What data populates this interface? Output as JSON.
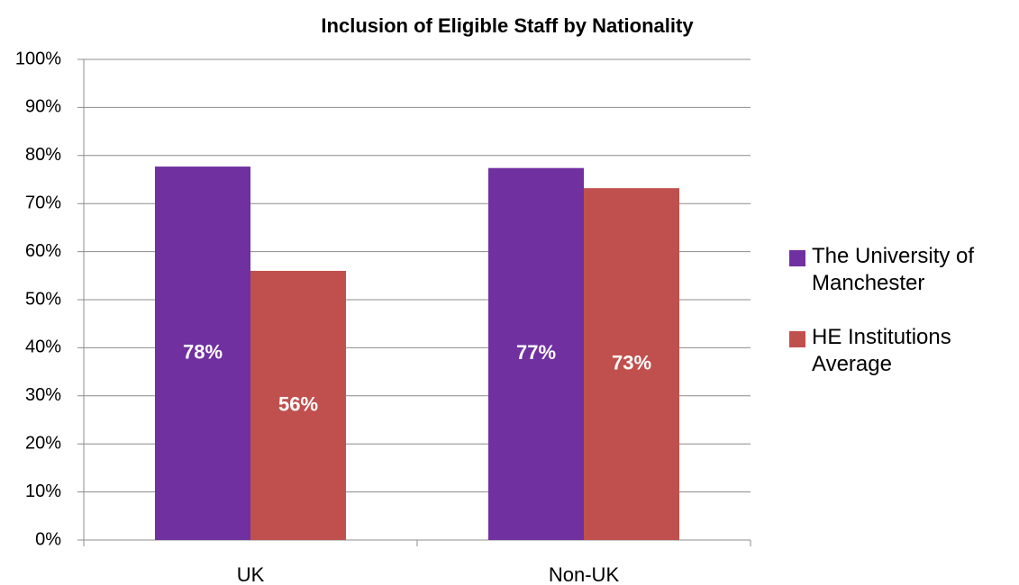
{
  "chart_data": {
    "type": "bar",
    "title": "Inclusion of Eligible Staff by Nationality",
    "categories": [
      "UK",
      "Non-UK"
    ],
    "series": [
      {
        "name": "The University of Manchester",
        "color": "#7030a0",
        "values": [
          77.7,
          77.4
        ],
        "value_labels": [
          "78%",
          "77%"
        ]
      },
      {
        "name": "HE Institutions Average",
        "color": "#c0504d",
        "values": [
          56,
          73.2
        ],
        "value_labels": [
          "56%",
          "73%"
        ]
      }
    ],
    "ylim": [
      0,
      100
    ],
    "yticks": [
      {
        "value": 0,
        "label": "0%"
      },
      {
        "value": 10,
        "label": "10%"
      },
      {
        "value": 20,
        "label": "20%"
      },
      {
        "value": 30,
        "label": "30%"
      },
      {
        "value": 40,
        "label": "40%"
      },
      {
        "value": 50,
        "label": "50%"
      },
      {
        "value": 60,
        "label": "60%"
      },
      {
        "value": 70,
        "label": "70%"
      },
      {
        "value": 80,
        "label": "80%"
      },
      {
        "value": 90,
        "label": "90%"
      },
      {
        "value": 100,
        "label": "100%"
      }
    ],
    "grid": true,
    "legend": "right"
  }
}
